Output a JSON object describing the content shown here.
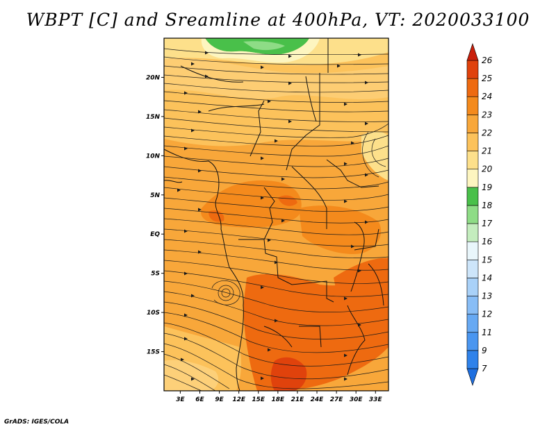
{
  "title": "WBPT [C] and Sreamline at 400hPa, VT: 2020033100",
  "credit": "GrADS: IGES/COLA",
  "map": {
    "lat_ticks": [
      {
        "value": 20,
        "label": "20N"
      },
      {
        "value": 15,
        "label": "15N"
      },
      {
        "value": 10,
        "label": "10N"
      },
      {
        "value": 5,
        "label": "5N"
      },
      {
        "value": 0,
        "label": "EQ"
      },
      {
        "value": -5,
        "label": "5S"
      },
      {
        "value": -10,
        "label": "10S"
      },
      {
        "value": -15,
        "label": "15S"
      }
    ],
    "lon_ticks": [
      {
        "value": 3,
        "label": "3E"
      },
      {
        "value": 6,
        "label": "6E"
      },
      {
        "value": 9,
        "label": "9E"
      },
      {
        "value": 12,
        "label": "12E"
      },
      {
        "value": 15,
        "label": "15E"
      },
      {
        "value": 18,
        "label": "18E"
      },
      {
        "value": 21,
        "label": "21E"
      },
      {
        "value": 24,
        "label": "24E"
      },
      {
        "value": 27,
        "label": "27E"
      },
      {
        "value": 30,
        "label": "30E"
      },
      {
        "value": 33,
        "label": "33E"
      }
    ],
    "lat_range": [
      -20,
      25
    ],
    "lon_range": [
      0.5,
      35
    ]
  },
  "colorbar": {
    "levels": [
      "7",
      "9",
      "11",
      "12",
      "13",
      "14",
      "15",
      "16",
      "17",
      "18",
      "19",
      "20",
      "21",
      "22",
      "23",
      "24",
      "25",
      "26"
    ],
    "colors": [
      "#1e6fe0",
      "#2f82ea",
      "#4a96f0",
      "#67a9f3",
      "#88bdf6",
      "#a9d1f8",
      "#cde5fa",
      "#e9f6fb",
      "#c4edbe",
      "#8edc86",
      "#49c04a",
      "#fdf5c0",
      "#fde08b",
      "#fcc25b",
      "#f8a73a",
      "#f48a1c",
      "#ee6a10",
      "#e0420c",
      "#c91e0a"
    ]
  }
}
